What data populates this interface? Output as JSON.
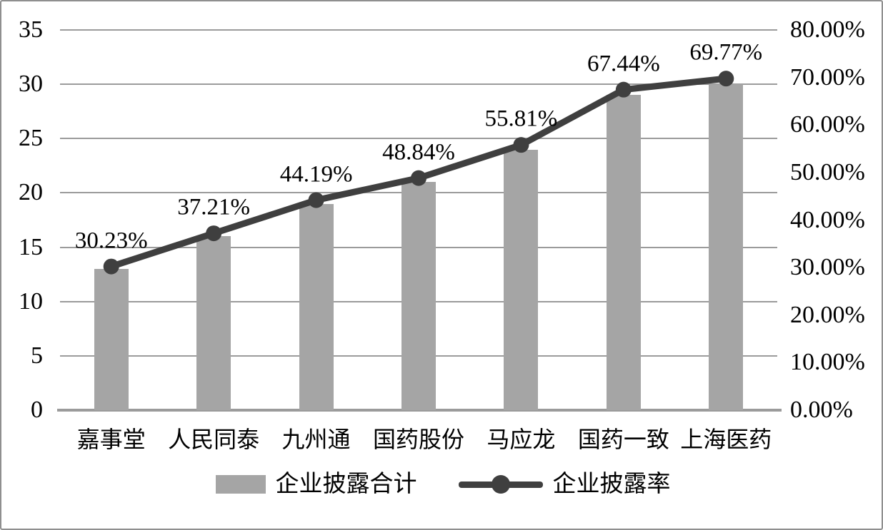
{
  "chart_data": {
    "type": "bar",
    "subtype": "combo-bar-line-dual-axis",
    "categories": [
      "嘉事堂",
      "人民同泰",
      "九州通",
      "国药股份",
      "马应龙",
      "国药一致",
      "上海医药"
    ],
    "series": [
      {
        "name": "企业披露合计",
        "type": "bar",
        "axis": "left",
        "values": [
          13,
          16,
          19,
          21,
          24,
          29,
          30
        ]
      },
      {
        "name": "企业披露率",
        "type": "line",
        "axis": "right",
        "values": [
          30.23,
          37.21,
          44.19,
          48.84,
          55.81,
          67.44,
          69.77
        ],
        "point_labels": [
          "30.23%",
          "37.21%",
          "44.19%",
          "48.84%",
          "55.81%",
          "67.44%",
          "69.77%"
        ]
      }
    ],
    "left_axis": {
      "min": 0,
      "max": 35,
      "step": 5,
      "ticks": [
        "0",
        "5",
        "10",
        "15",
        "20",
        "25",
        "30",
        "35"
      ]
    },
    "right_axis": {
      "min": 0,
      "max": 80,
      "step": 10,
      "ticks": [
        "0.00%",
        "10.00%",
        "20.00%",
        "30.00%",
        "40.00%",
        "50.00%",
        "60.00%",
        "70.00%",
        "80.00%"
      ]
    },
    "grid": true,
    "legend_position": "bottom",
    "title": ""
  },
  "colors": {
    "bar_fill": "#a5a5a5",
    "line": "#3f3f3f",
    "marker": "#3f3f3f",
    "gridline": "#9b9b9b",
    "axis_line": "#9b9b9b",
    "text": "#000000",
    "frame_border": "#8f8f8f",
    "background": "#ffffff"
  }
}
